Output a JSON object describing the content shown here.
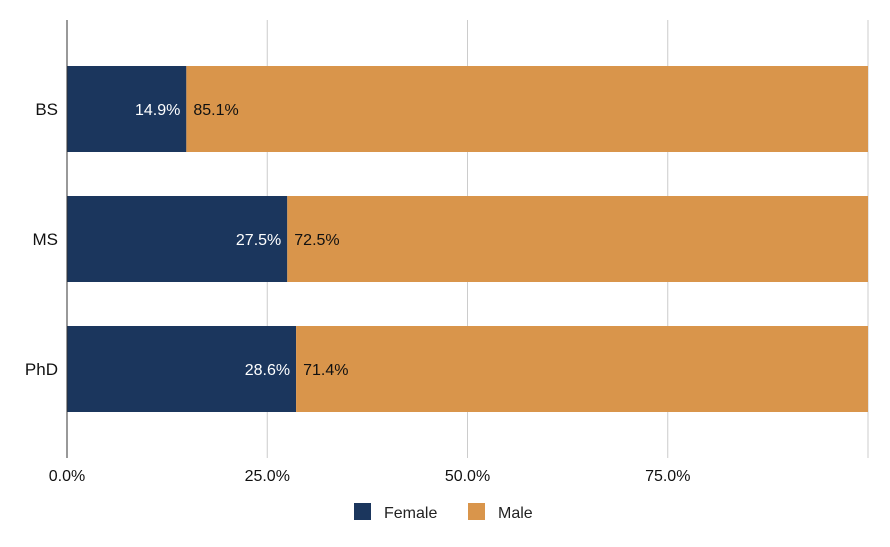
{
  "chart_data": {
    "type": "bar",
    "orientation": "horizontal",
    "stacked": "percent",
    "categories": [
      "BS",
      "MS",
      "PhD"
    ],
    "series": [
      {
        "name": "Female",
        "color": "#1b365d",
        "values": [
          14.9,
          27.5,
          28.6
        ],
        "labels": [
          "14.9%",
          "27.5%",
          "28.6%"
        ]
      },
      {
        "name": "Male",
        "color": "#d9954b",
        "values": [
          85.1,
          72.5,
          71.4
        ],
        "labels": [
          "85.1%",
          "72.5%",
          "71.4%"
        ]
      }
    ],
    "xlim": [
      0,
      100
    ],
    "x_ticks": [
      0,
      25,
      50,
      75
    ],
    "x_tick_labels": [
      "0.0%",
      "25.0%",
      "50.0%",
      "75.0%"
    ],
    "grid": true,
    "legend": "bottom-center",
    "title": "",
    "xlabel": "",
    "ylabel": ""
  }
}
